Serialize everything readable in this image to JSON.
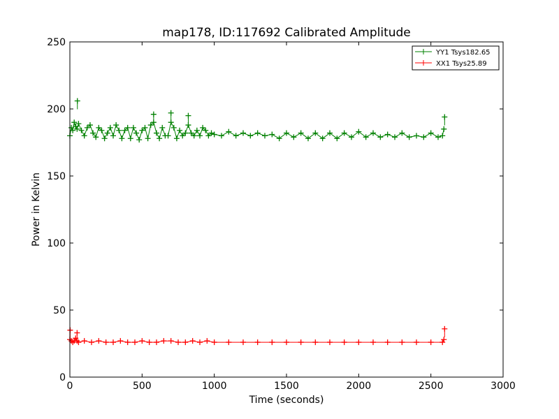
{
  "chart_data": {
    "type": "line",
    "title": "map178, ID:117692 Calibrated Amplitude",
    "xlabel": "Time (seconds)",
    "ylabel": "Power in Kelvin",
    "xlim": [
      0,
      3000
    ],
    "ylim": [
      0,
      250
    ],
    "xticks": [
      "0",
      "500",
      "1000",
      "1500",
      "2000",
      "2500",
      "3000"
    ],
    "yticks": [
      "0",
      "50",
      "100",
      "150",
      "200",
      "250"
    ],
    "grid": false,
    "legend_position": "top-right",
    "marker": "+",
    "series": [
      {
        "name": "YY1 Tsys182.65",
        "color": "#008000",
        "x": [
          0,
          10,
          20,
          30,
          40,
          50,
          60,
          80,
          100,
          120,
          140,
          160,
          180,
          200,
          220,
          240,
          260,
          280,
          300,
          320,
          340,
          360,
          380,
          400,
          420,
          440,
          460,
          480,
          500,
          520,
          540,
          560,
          580,
          600,
          620,
          640,
          660,
          680,
          700,
          720,
          740,
          760,
          780,
          800,
          820,
          840,
          860,
          880,
          900,
          920,
          940,
          960,
          980,
          1000,
          1050,
          1100,
          1150,
          1200,
          1250,
          1300,
          1350,
          1400,
          1450,
          1500,
          1550,
          1600,
          1650,
          1700,
          1750,
          1800,
          1850,
          1900,
          1950,
          2000,
          2050,
          2100,
          2150,
          2200,
          2250,
          2300,
          2350,
          2400,
          2450,
          2500,
          2550,
          2580,
          2590
        ],
        "y": [
          180,
          186,
          184,
          190,
          187,
          185,
          189,
          184,
          180,
          186,
          188,
          182,
          179,
          186,
          184,
          178,
          182,
          186,
          180,
          188,
          184,
          178,
          184,
          186,
          178,
          186,
          182,
          177,
          184,
          186,
          178,
          188,
          190,
          182,
          178,
          186,
          180,
          180,
          190,
          186,
          178,
          184,
          180,
          182,
          188,
          182,
          180,
          184,
          180,
          186,
          184,
          180,
          182,
          181,
          180,
          183,
          180,
          182,
          180,
          182,
          180,
          181,
          178,
          182,
          179,
          182,
          178,
          182,
          178,
          182,
          178,
          182,
          179,
          183,
          179,
          182,
          179,
          181,
          179,
          182,
          179,
          180,
          179,
          182,
          179,
          180,
          185
        ]
      },
      {
        "name": "XX1 Tsys25.89",
        "color": "#ff0000",
        "x": [
          0,
          10,
          20,
          30,
          40,
          50,
          60,
          100,
          150,
          200,
          250,
          300,
          350,
          400,
          450,
          500,
          550,
          600,
          650,
          700,
          750,
          800,
          850,
          900,
          950,
          1000,
          1100,
          1200,
          1300,
          1400,
          1500,
          1600,
          1700,
          1800,
          1900,
          2000,
          2100,
          2200,
          2300,
          2400,
          2500,
          2580,
          2590
        ],
        "y": [
          28,
          27,
          26,
          27,
          29,
          27,
          26,
          27,
          26,
          27,
          26,
          26,
          27,
          26,
          26,
          27,
          26,
          26,
          27,
          27,
          26,
          26,
          27,
          26,
          27,
          26,
          26,
          26,
          26,
          26,
          26,
          26,
          26,
          26,
          26,
          26,
          26,
          26,
          26,
          26,
          26,
          26,
          28
        ]
      }
    ],
    "spikes": [
      {
        "series": 0,
        "x": 52,
        "y": 206
      },
      {
        "series": 0,
        "x": 580,
        "y": 196
      },
      {
        "series": 0,
        "x": 700,
        "y": 197
      },
      {
        "series": 0,
        "x": 820,
        "y": 195
      },
      {
        "series": 0,
        "x": 2595,
        "y": 194
      },
      {
        "series": 1,
        "x": 2,
        "y": 35
      },
      {
        "series": 1,
        "x": 50,
        "y": 33
      },
      {
        "series": 1,
        "x": 2595,
        "y": 36
      }
    ]
  }
}
